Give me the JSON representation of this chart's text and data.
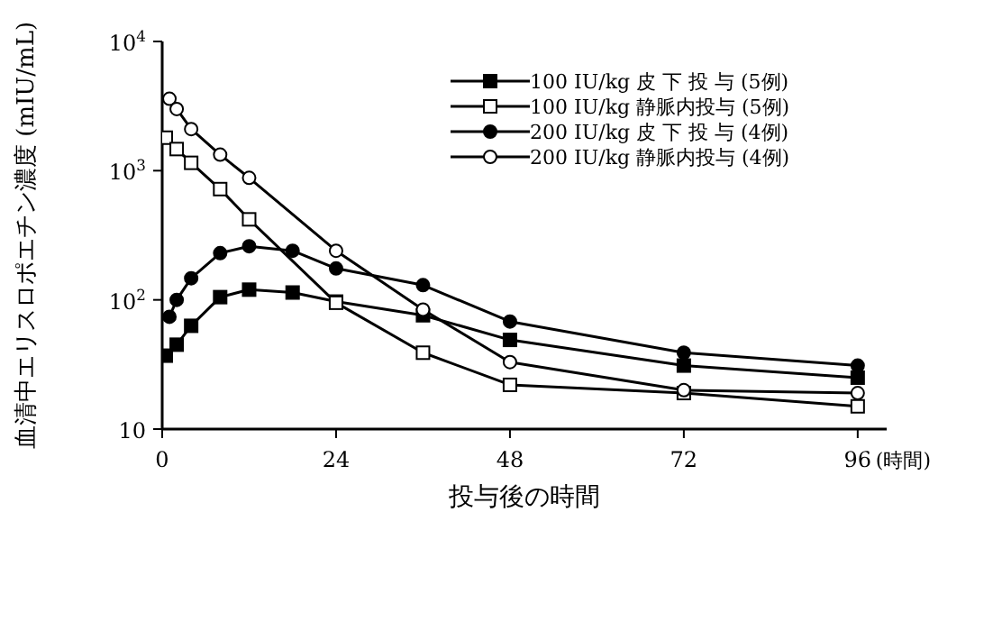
{
  "chart_data": {
    "type": "line",
    "xlabel": "投与後の時間",
    "ylabel": "血清中エリスロポエチン濃度 (mIU/mL)",
    "annotations": [
      "(時間)"
    ],
    "log": "y",
    "xlim": [
      0,
      100
    ],
    "xticks": [
      0,
      24,
      48,
      72,
      96
    ],
    "ylim": [
      10,
      10000
    ],
    "yticks": [
      10,
      {
        "value": 100,
        "label": "10$^{2}$"
      },
      {
        "value": 1000,
        "label": "10$^{3}$"
      },
      {
        "value": 10000,
        "label": "10$^{4}$"
      }
    ],
    "legend": "top right",
    "line_style": "solid",
    "series": [
      {
        "name": "100 IU/kg 皮 下 投 与 (5例)",
        "color": "#000000",
        "marker": "square",
        "x": [
          0.5,
          2,
          4,
          8,
          12,
          18,
          24,
          36,
          48,
          72,
          96
        ],
        "values": [
          37,
          45,
          63,
          105,
          120,
          114,
          97,
          76,
          49,
          31,
          25
        ]
      },
      {
        "name": "100 IU/kg 静脈内投与 (5例)",
        "color": "#000000",
        "marker": "square",
        "x": [
          0.5,
          2,
          4,
          8,
          12,
          24,
          36,
          48,
          72,
          96
        ],
        "values": [
          1800,
          1470,
          1150,
          720,
          420,
          95,
          39,
          22,
          19,
          15
        ]
      },
      {
        "name": "200 IU/kg 皮 下 投 与 (4例)",
        "color": "#000000",
        "marker": "circle",
        "x": [
          1,
          2,
          4,
          8,
          12,
          18,
          24,
          36,
          48,
          72,
          96
        ],
        "values": [
          74,
          100,
          147,
          230,
          260,
          240,
          175,
          130,
          68,
          39,
          31
        ]
      },
      {
        "name": "200 IU/kg 静脈内投与 (4例)",
        "color": "#000000",
        "marker": "circle",
        "x": [
          1,
          2,
          4,
          8,
          12,
          24,
          36,
          48,
          72,
          96
        ],
        "values": [
          3600,
          3000,
          2100,
          1330,
          880,
          240,
          84,
          33,
          20,
          19
        ]
      }
    ]
  }
}
